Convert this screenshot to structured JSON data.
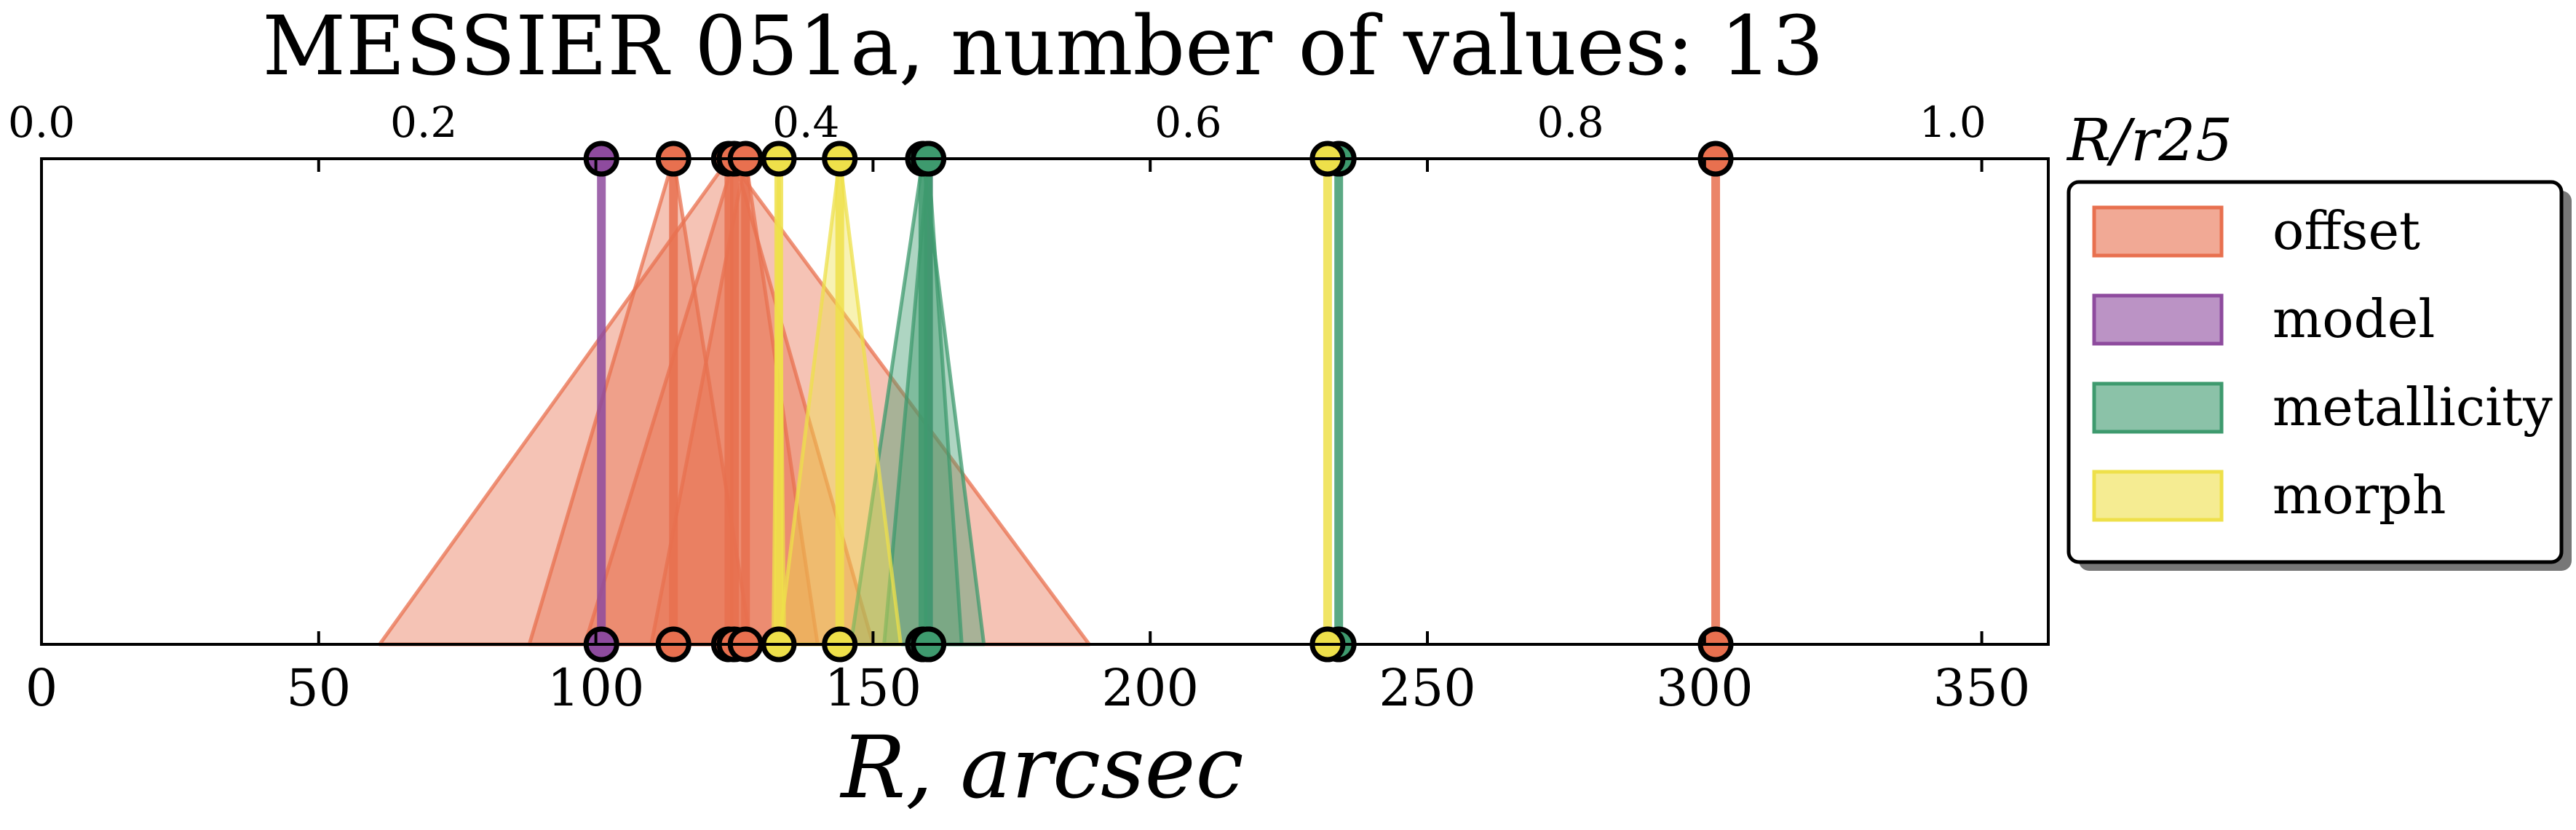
{
  "chart_data": {
    "type": "line",
    "title": "MESSIER 051a, number of values: 13",
    "xlabel": "R, arcsec",
    "x_top_label": "R/r25",
    "xlim": [
      0,
      362
    ],
    "x_top_lim": [
      0,
      1.05
    ],
    "x_ticks": [
      0,
      50,
      100,
      150,
      200,
      250,
      300,
      350
    ],
    "x_top_ticks": [
      "0.0",
      "0.2",
      "0.4",
      "0.6",
      "0.8",
      "1.0"
    ],
    "legend_position": "outside-right",
    "legend": [
      {
        "name": "offset",
        "color": "#E8704F"
      },
      {
        "name": "model",
        "color": "#8E4B9E"
      },
      {
        "name": "metallicity",
        "color": "#3E9A6E"
      },
      {
        "name": "morph",
        "color": "#EEE04A"
      }
    ],
    "series": [
      {
        "name": "offset",
        "color": "#E8704F",
        "values": [
          {
            "x": 114,
            "lo": 88,
            "hi": 128
          },
          {
            "x": 124,
            "lo": 61,
            "hi": 189
          },
          {
            "x": 125,
            "lo": 98,
            "hi": 150
          },
          {
            "x": 127,
            "lo": 110,
            "hi": 140
          },
          {
            "x": 302,
            "lo": 302,
            "hi": 302
          }
        ]
      },
      {
        "name": "model",
        "color": "#8E4B9E",
        "values": [
          {
            "x": 101,
            "lo": 101,
            "hi": 101
          },
          {
            "x": 160,
            "lo": 160,
            "hi": 160
          }
        ]
      },
      {
        "name": "metallicity",
        "color": "#3E9A6E",
        "values": [
          {
            "x": 159,
            "lo": 146,
            "hi": 170
          },
          {
            "x": 160,
            "lo": 152,
            "hi": 166
          },
          {
            "x": 234,
            "lo": 234,
            "hi": 234
          }
        ]
      },
      {
        "name": "morph",
        "color": "#EEE04A",
        "values": [
          {
            "x": 133,
            "lo": 132,
            "hi": 134
          },
          {
            "x": 144,
            "lo": 133,
            "hi": 155
          },
          {
            "x": 232,
            "lo": 232,
            "hi": 232
          }
        ]
      }
    ]
  }
}
